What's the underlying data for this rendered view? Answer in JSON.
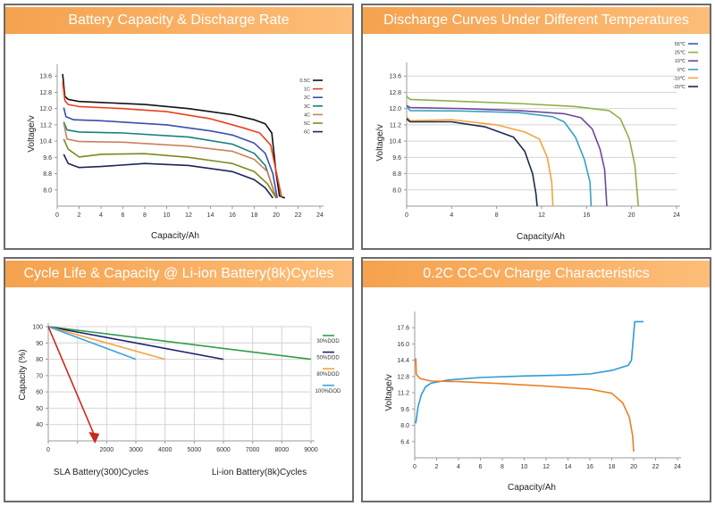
{
  "panels": [
    {
      "title": "Battery Capacity & Discharge Rate"
    },
    {
      "title": "Discharge Curves Under Different Temperatures"
    },
    {
      "title": "Cycle Life & Capacity @ Li-ion Battery(8k)Cycles"
    },
    {
      "title": "0.2C CC-Cv Charge Characteristics"
    }
  ],
  "chart_data": [
    {
      "type": "line",
      "title": "Battery Capacity & Discharge Rate",
      "xlabel": "Capacity/Ah",
      "ylabel": "Voltage/v",
      "xlim": [
        0,
        24
      ],
      "ylim": [
        7.2,
        14.4
      ],
      "xticks": [
        0,
        2,
        4,
        6,
        8,
        10,
        12,
        14,
        16,
        18,
        20,
        22,
        24
      ],
      "yticks": [
        "8.0",
        "8.8",
        "9.6",
        "10.4",
        "11.2",
        "12.0",
        "12.8",
        "13.6"
      ],
      "grid": false,
      "legend": "top-right",
      "series": [
        {
          "name": "0.5C",
          "color": "#111111",
          "points": [
            [
              0.5,
              13.7
            ],
            [
              0.7,
              12.6
            ],
            [
              1,
              12.45
            ],
            [
              2,
              12.35
            ],
            [
              4,
              12.3
            ],
            [
              8,
              12.2
            ],
            [
              12,
              12.0
            ],
            [
              16,
              11.7
            ],
            [
              18,
              11.45
            ],
            [
              19,
              11.25
            ],
            [
              19.6,
              10.8
            ],
            [
              20,
              8.8
            ],
            [
              20.3,
              7.7
            ],
            [
              20.8,
              7.6
            ]
          ]
        },
        {
          "name": "1C",
          "color": "#e8401c",
          "points": [
            [
              0.5,
              13.3
            ],
            [
              0.7,
              12.4
            ],
            [
              1,
              12.2
            ],
            [
              2,
              12.1
            ],
            [
              6,
              12.0
            ],
            [
              10,
              11.85
            ],
            [
              14,
              11.5
            ],
            [
              17,
              11.05
            ],
            [
              18.5,
              10.8
            ],
            [
              19.5,
              10.2
            ],
            [
              20.2,
              8.4
            ],
            [
              20.5,
              7.65
            ]
          ]
        },
        {
          "name": "2C",
          "color": "#3a4fa8",
          "points": [
            [
              0.6,
              12.05
            ],
            [
              0.8,
              11.6
            ],
            [
              1.5,
              11.45
            ],
            [
              4,
              11.4
            ],
            [
              10,
              11.2
            ],
            [
              14,
              10.9
            ],
            [
              16,
              10.7
            ],
            [
              18,
              10.3
            ],
            [
              19,
              9.8
            ],
            [
              19.7,
              8.8
            ],
            [
              20.1,
              7.6
            ]
          ]
        },
        {
          "name": "3C",
          "color": "#17807a",
          "points": [
            [
              0.6,
              11.35
            ],
            [
              0.9,
              10.95
            ],
            [
              2,
              10.85
            ],
            [
              6,
              10.8
            ],
            [
              12,
              10.6
            ],
            [
              16,
              10.25
            ],
            [
              18,
              9.8
            ],
            [
              19,
              9.2
            ],
            [
              20,
              7.6
            ]
          ]
        },
        {
          "name": "4C",
          "color": "#c9825c",
          "points": [
            [
              0.6,
              11.3
            ],
            [
              0.9,
              10.5
            ],
            [
              2,
              10.38
            ],
            [
              6,
              10.35
            ],
            [
              12,
              10.15
            ],
            [
              16,
              9.9
            ],
            [
              18,
              9.5
            ],
            [
              19.2,
              8.9
            ],
            [
              20,
              7.6
            ]
          ]
        },
        {
          "name": "5C",
          "color": "#7a8a1c",
          "points": [
            [
              0.6,
              10.5
            ],
            [
              1,
              10.0
            ],
            [
              2,
              9.62
            ],
            [
              4,
              9.75
            ],
            [
              8,
              9.78
            ],
            [
              12,
              9.6
            ],
            [
              16,
              9.3
            ],
            [
              18,
              8.9
            ],
            [
              19.2,
              8.3
            ],
            [
              20,
              7.6
            ]
          ]
        },
        {
          "name": "6C",
          "color": "#1c2458",
          "points": [
            [
              0.6,
              9.75
            ],
            [
              1,
              9.3
            ],
            [
              2,
              9.1
            ],
            [
              4,
              9.15
            ],
            [
              8,
              9.3
            ],
            [
              12,
              9.2
            ],
            [
              16,
              8.9
            ],
            [
              18,
              8.5
            ],
            [
              19,
              8.1
            ],
            [
              19.7,
              7.6
            ]
          ]
        }
      ]
    },
    {
      "type": "line",
      "title": "Discharge Curves Under Different Temperatures",
      "xlabel": "Capacity/Ah",
      "ylabel": "Voltage/v",
      "xlim": [
        0,
        24
      ],
      "ylim": [
        7.2,
        14.4
      ],
      "xticks": [
        0,
        4,
        8,
        12,
        16,
        20,
        24
      ],
      "yticks": [
        "8.0",
        "8.8",
        "9.6",
        "10.4",
        "11.2",
        "12.0",
        "12.8",
        "13.6"
      ],
      "grid": true,
      "legend": "top-right",
      "series": [
        {
          "name": "55℃",
          "color": "#3a5bb0",
          "points": []
        },
        {
          "name": "25℃",
          "color": "#8fae4a",
          "points": [
            [
              0,
              12.6
            ],
            [
              0.3,
              12.45
            ],
            [
              5,
              12.35
            ],
            [
              10,
              12.25
            ],
            [
              15,
              12.1
            ],
            [
              18,
              11.9
            ],
            [
              19,
              11.5
            ],
            [
              19.8,
              10.5
            ],
            [
              20.3,
              9.2
            ],
            [
              20.6,
              7.2
            ]
          ]
        },
        {
          "name": "10℃",
          "color": "#6a4a98",
          "points": [
            [
              0,
              12.15
            ],
            [
              0.3,
              12.05
            ],
            [
              5,
              12.0
            ],
            [
              10,
              11.9
            ],
            [
              14,
              11.75
            ],
            [
              15.5,
              11.55
            ],
            [
              16.5,
              11.0
            ],
            [
              17.2,
              10.0
            ],
            [
              17.6,
              9.0
            ],
            [
              17.8,
              7.2
            ]
          ]
        },
        {
          "name": "0℃",
          "color": "#3aa0c0",
          "points": [
            [
              0,
              12.1
            ],
            [
              0.3,
              11.9
            ],
            [
              5,
              11.88
            ],
            [
              10,
              11.8
            ],
            [
              13,
              11.6
            ],
            [
              14,
              11.35
            ],
            [
              15,
              10.6
            ],
            [
              15.8,
              9.5
            ],
            [
              16.3,
              8.4
            ],
            [
              16.4,
              7.2
            ]
          ]
        },
        {
          "name": "-10℃",
          "color": "#f7a23c",
          "points": [
            [
              0,
              11.6
            ],
            [
              0.3,
              11.4
            ],
            [
              4,
              11.45
            ],
            [
              8,
              11.2
            ],
            [
              10.5,
              10.85
            ],
            [
              11.8,
              10.5
            ],
            [
              12.5,
              9.6
            ],
            [
              12.9,
              8.4
            ],
            [
              13,
              7.2
            ]
          ]
        },
        {
          "name": "-20℃",
          "color": "#1c2a50",
          "points": [
            [
              0,
              11.5
            ],
            [
              0.3,
              11.35
            ],
            [
              4,
              11.35
            ],
            [
              7,
              11.1
            ],
            [
              9.5,
              10.6
            ],
            [
              10.5,
              9.9
            ],
            [
              11.2,
              8.8
            ],
            [
              11.5,
              7.8
            ],
            [
              11.6,
              7.2
            ]
          ]
        }
      ]
    },
    {
      "type": "line",
      "title": "Cycle Life & Capacity @ Li-ion Battery(8k)Cycles",
      "xlabel": "",
      "ylabel": "Capacity (%)",
      "xlim": [
        0,
        9000
      ],
      "ylim": [
        30,
        100
      ],
      "xticks": [
        "0",
        "",
        "2000",
        "3000",
        "4000",
        "5000",
        "6000",
        "7000",
        "8000",
        "9000"
      ],
      "yticks": [
        "40",
        "50",
        "60",
        "70",
        "80",
        "90",
        "100"
      ],
      "grid": true,
      "legend": "right",
      "annotations": [
        "SLA Battery(300)Cycles",
        "Li-ion Battery(8k)Cycles"
      ],
      "arrow": {
        "from": [
          0,
          100
        ],
        "to": [
          1600,
          30
        ],
        "color": "#c8281e"
      },
      "series": [
        {
          "name": "30%DOD",
          "color": "#2e9e4a",
          "points": [
            [
              0,
              100
            ],
            [
              9000,
              80
            ]
          ]
        },
        {
          "name": "50%DOD",
          "color": "#1f1f70",
          "points": [
            [
              0,
              100
            ],
            [
              6000,
              80
            ]
          ]
        },
        {
          "name": "80%DOD",
          "color": "#f7a23c",
          "points": [
            [
              0,
              100
            ],
            [
              4000,
              80
            ]
          ]
        },
        {
          "name": "100%DOD",
          "color": "#3aa6dc",
          "points": [
            [
              0,
              100
            ],
            [
              3000,
              80
            ]
          ]
        }
      ]
    },
    {
      "type": "line",
      "title": "0.2C CC-Cv Charge Characteristics",
      "xlabel": "Capacity/Ah",
      "ylabel": "Voltage/v",
      "xlim": [
        0,
        24
      ],
      "ylim": [
        4.8,
        19.2
      ],
      "xticks": [
        0,
        2,
        4,
        6,
        8,
        10,
        12,
        14,
        16,
        18,
        20,
        22,
        24
      ],
      "yticks": [
        "6.4",
        "8.0",
        "9.6",
        "11.2",
        "12.8",
        "14.4",
        "16.0",
        "17.6"
      ],
      "grid": false,
      "series": [
        {
          "color": "#2e9bd6",
          "points": [
            [
              0.1,
              8.2
            ],
            [
              0.3,
              9.8
            ],
            [
              0.6,
              11.0
            ],
            [
              1,
              11.8
            ],
            [
              1.5,
              12.15
            ],
            [
              3,
              12.45
            ],
            [
              6,
              12.7
            ],
            [
              10,
              12.85
            ],
            [
              14,
              12.95
            ],
            [
              16,
              13.05
            ],
            [
              18,
              13.4
            ],
            [
              19.5,
              13.9
            ],
            [
              19.8,
              14.4
            ],
            [
              20.1,
              18.2
            ],
            [
              20.9,
              18.2
            ]
          ]
        },
        {
          "color": "#ec7f22",
          "points": [
            [
              0.1,
              14.6
            ],
            [
              0.15,
              13.0
            ],
            [
              0.5,
              12.6
            ],
            [
              1.5,
              12.35
            ],
            [
              4,
              12.3
            ],
            [
              8,
              12.1
            ],
            [
              12,
              11.85
            ],
            [
              16,
              11.55
            ],
            [
              18,
              11.15
            ],
            [
              19,
              10.2
            ],
            [
              19.6,
              8.8
            ],
            [
              19.9,
              7.0
            ],
            [
              20,
              5.4
            ]
          ]
        }
      ]
    }
  ]
}
